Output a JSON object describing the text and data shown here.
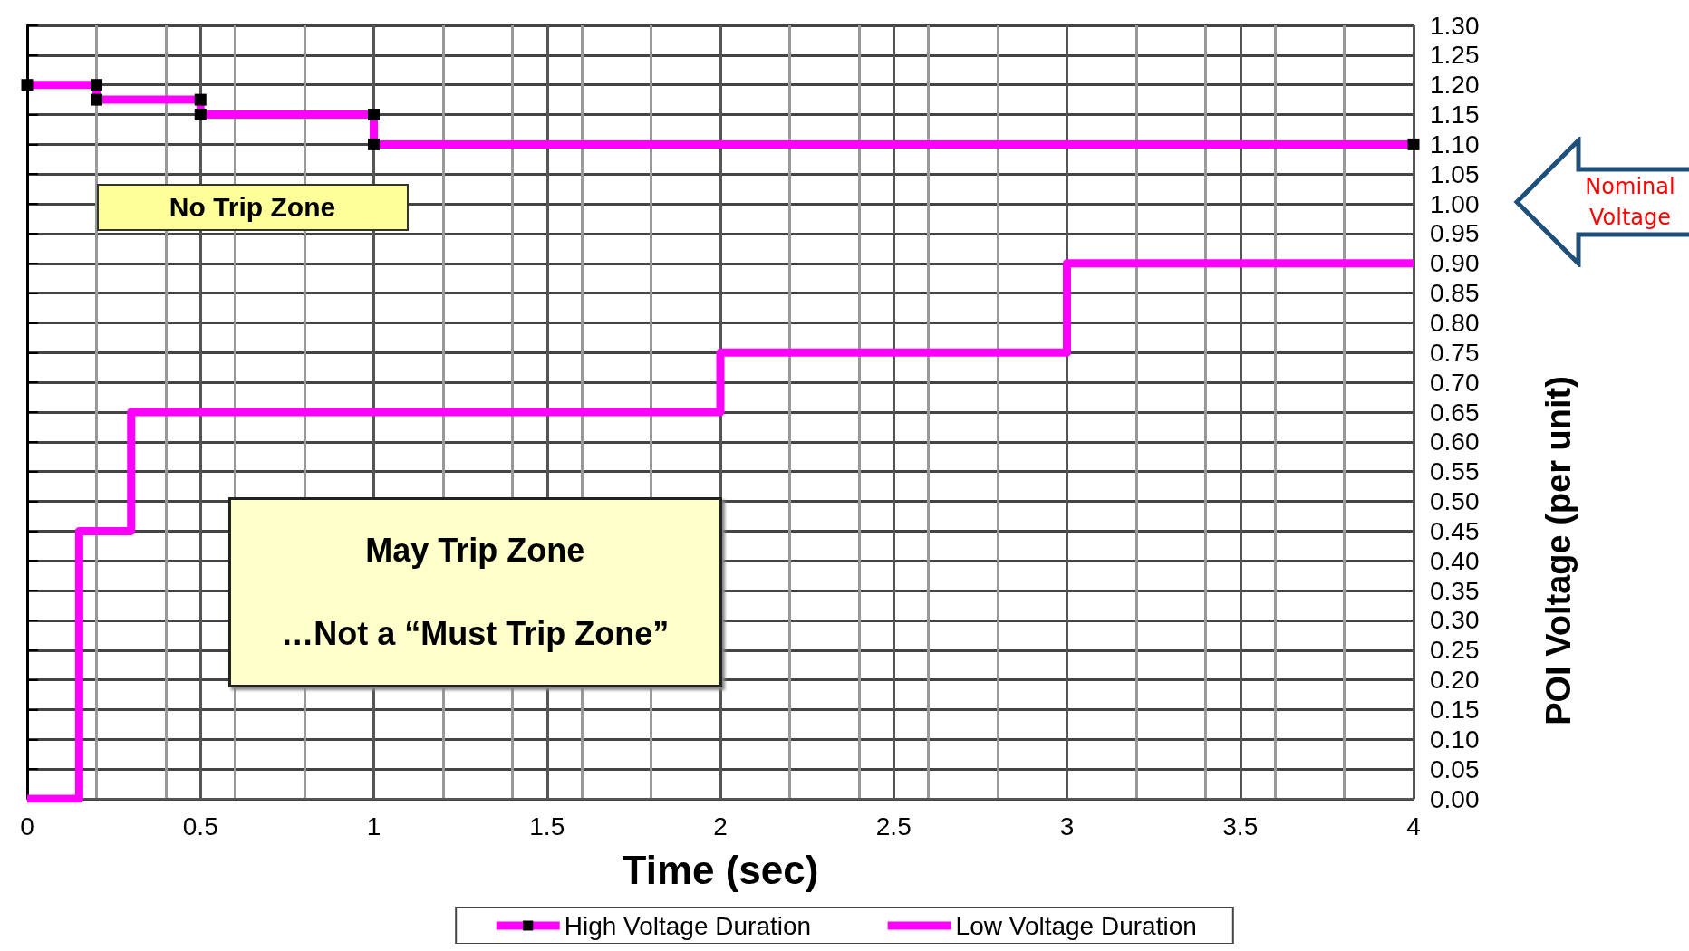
{
  "chart_data": {
    "type": "line",
    "xlabel": "Time (sec)",
    "ylabel": "POI Voltage (per unit)",
    "xlim": [
      0,
      4
    ],
    "xticks": [
      0,
      0.5,
      1,
      1.5,
      2,
      2.5,
      3,
      3.5,
      4
    ],
    "ylim": [
      0,
      1.3
    ],
    "yticks": [
      {
        "value": 0,
        "label": "0.00"
      },
      {
        "value": 0.05,
        "label": "0.05"
      },
      {
        "value": 0.1,
        "label": "0.10"
      },
      {
        "value": 0.15,
        "label": "0.15"
      },
      {
        "value": 0.2,
        "label": "0.20"
      },
      {
        "value": 0.25,
        "label": "0.25"
      },
      {
        "value": 0.3,
        "label": "0.30"
      },
      {
        "value": 0.35,
        "label": "0.35"
      },
      {
        "value": 0.4,
        "label": "0.40"
      },
      {
        "value": 0.45,
        "label": "0.45"
      },
      {
        "value": 0.5,
        "label": "0.50"
      },
      {
        "value": 0.55,
        "label": "0.55"
      },
      {
        "value": 0.6,
        "label": "0.60"
      },
      {
        "value": 0.65,
        "label": "0.65"
      },
      {
        "value": 0.7,
        "label": "0.70"
      },
      {
        "value": 0.75,
        "label": "0.75"
      },
      {
        "value": 0.8,
        "label": "0.80"
      },
      {
        "value": 0.85,
        "label": "0.85"
      },
      {
        "value": 0.9,
        "label": "0.90"
      },
      {
        "value": 0.95,
        "label": "0.95"
      },
      {
        "value": 1,
        "label": "1.00"
      },
      {
        "value": 1.05,
        "label": "1.05"
      },
      {
        "value": 1.1,
        "label": "1.10"
      },
      {
        "value": 1.15,
        "label": "1.15"
      },
      {
        "value": 1.2,
        "label": "1.20"
      },
      {
        "value": 1.25,
        "label": "1.25"
      },
      {
        "value": 1.3,
        "label": "1.30"
      }
    ],
    "grid": true,
    "legend": "bottom",
    "line_style": "solid",
    "series": [
      {
        "name": "High Voltage Duration",
        "color": "#ff00ff",
        "marker": "square",
        "x": [
          0,
          0.2,
          0.2,
          0.5,
          0.5,
          1,
          1,
          4
        ],
        "values": [
          1.2,
          1.2,
          1.175,
          1.175,
          1.15,
          1.15,
          1.1,
          1.1
        ]
      },
      {
        "name": "Low Voltage Duration",
        "color": "#ff00ff",
        "marker": "none",
        "x": [
          0,
          0.15,
          0.15,
          0.3,
          0.3,
          2,
          2,
          3,
          3,
          4
        ],
        "values": [
          0,
          0,
          0.45,
          0.45,
          0.65,
          0.65,
          0.75,
          0.75,
          0.9,
          0.9
        ]
      }
    ],
    "annotations": [
      "No Trip Zone",
      "May Trip Zone",
      "…Not a “Must Trip Zone”",
      "Nominal Voltage"
    ]
  }
}
